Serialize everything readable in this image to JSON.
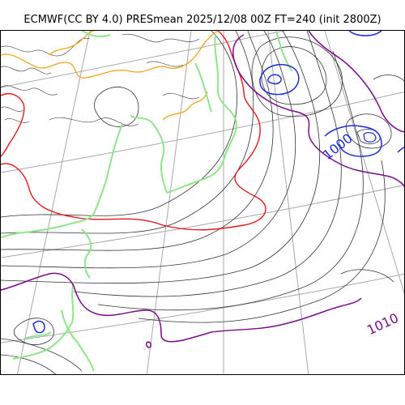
{
  "title": "ECMWF(CC BY 4.0) PRESmean 2025/12/08 00Z FT=240 (init 2800Z)",
  "labels": {
    "isobar_1000": "1000",
    "isobar_1010": "1010"
  },
  "colors": {
    "coastline_land": "#8fe68a",
    "isobar_thin": "#333333",
    "isobar_1000": "#1f2ed8",
    "isobar_1010": "#7a0b8c",
    "isotherm_red": "#e8161b",
    "isotherm_orange": "#f5a31a",
    "grid": "#a8a8a8"
  }
}
